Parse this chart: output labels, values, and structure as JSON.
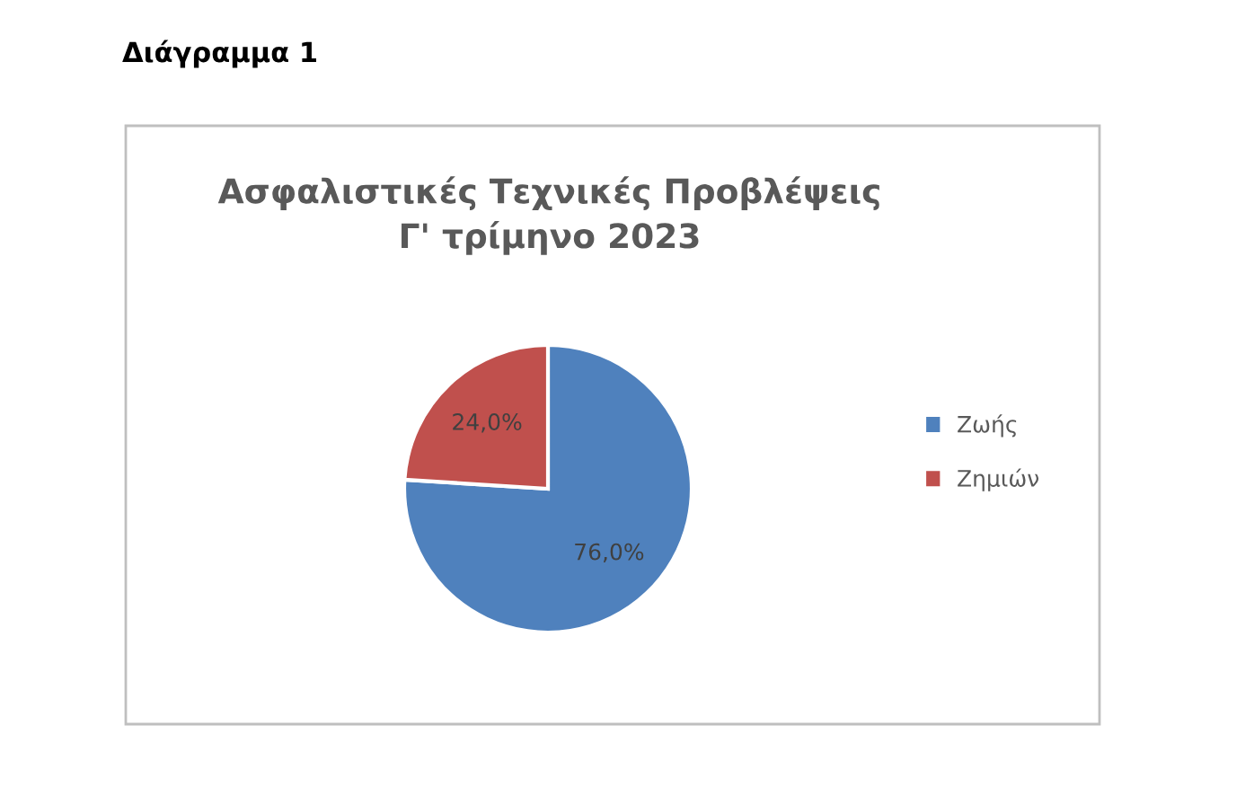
{
  "chart_data": {
    "type": "pie",
    "title": "Ασφαλιστικές Τεχνικές Προβλέψεις\nΓ' τρίμηνο 2023",
    "categories": [
      "Ζωής",
      "Ζημιών"
    ],
    "values": [
      76.0,
      24.0
    ],
    "colors": [
      "#4f81bd",
      "#c0504d"
    ],
    "value_labels": [
      "76,0%",
      "24,0%"
    ],
    "legend": "right",
    "annotations": [
      "Διάγραμμα 1"
    ]
  }
}
